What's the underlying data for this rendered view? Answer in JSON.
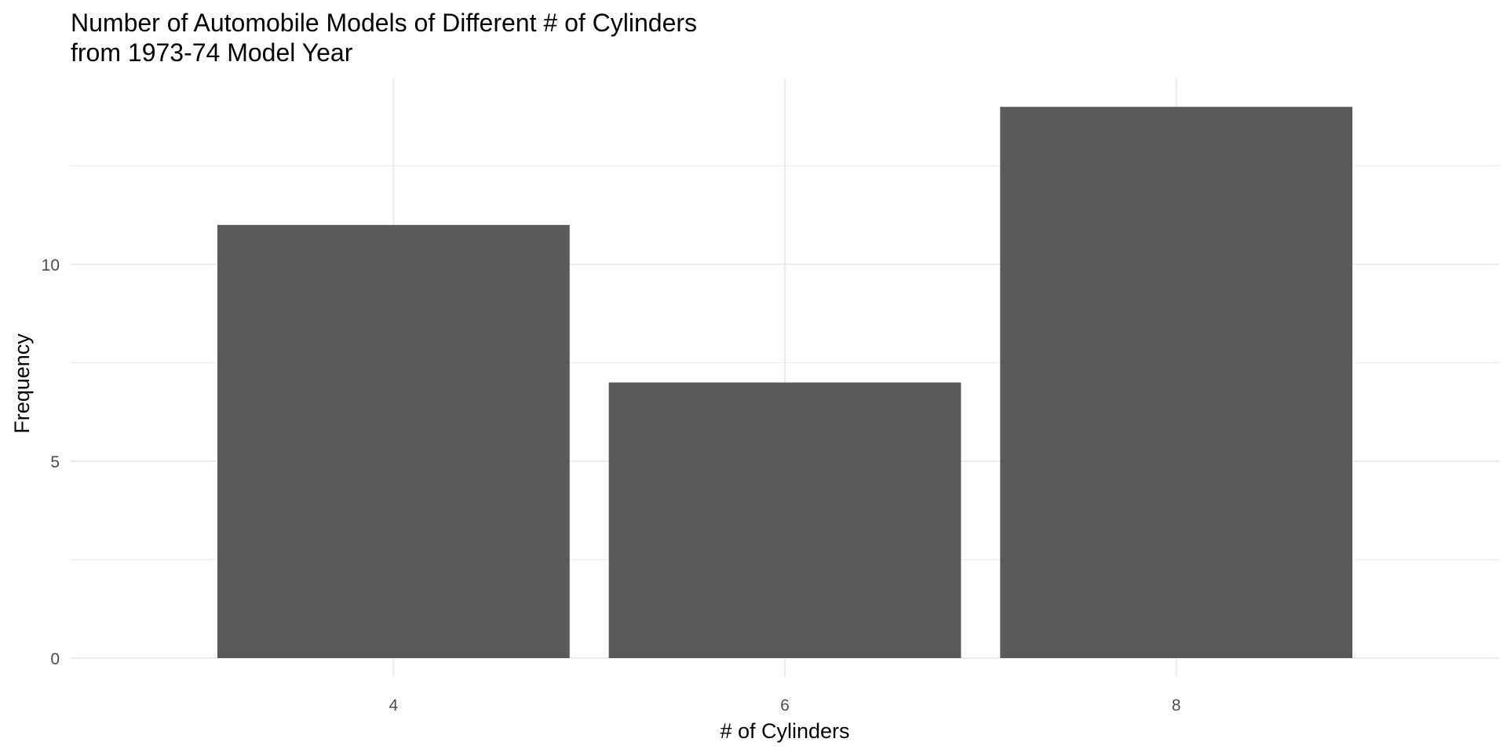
{
  "chart_data": {
    "type": "bar",
    "title": [
      "Number of Automobile Models of Different # of Cylinders",
      "from 1973-74 Model Year"
    ],
    "xlabel": "# of Cylinders",
    "ylabel": "Frequency",
    "categories": [
      "4",
      "6",
      "8"
    ],
    "values": [
      11,
      7,
      14
    ],
    "ylim": [
      0,
      14.7
    ],
    "y_ticks": [
      0,
      5,
      10
    ],
    "y_minor_ticks": [
      2.5,
      7.5,
      12.5
    ],
    "grid": true,
    "legend": "none",
    "bar_color": "#595959",
    "grid_color": "#ebebeb"
  }
}
